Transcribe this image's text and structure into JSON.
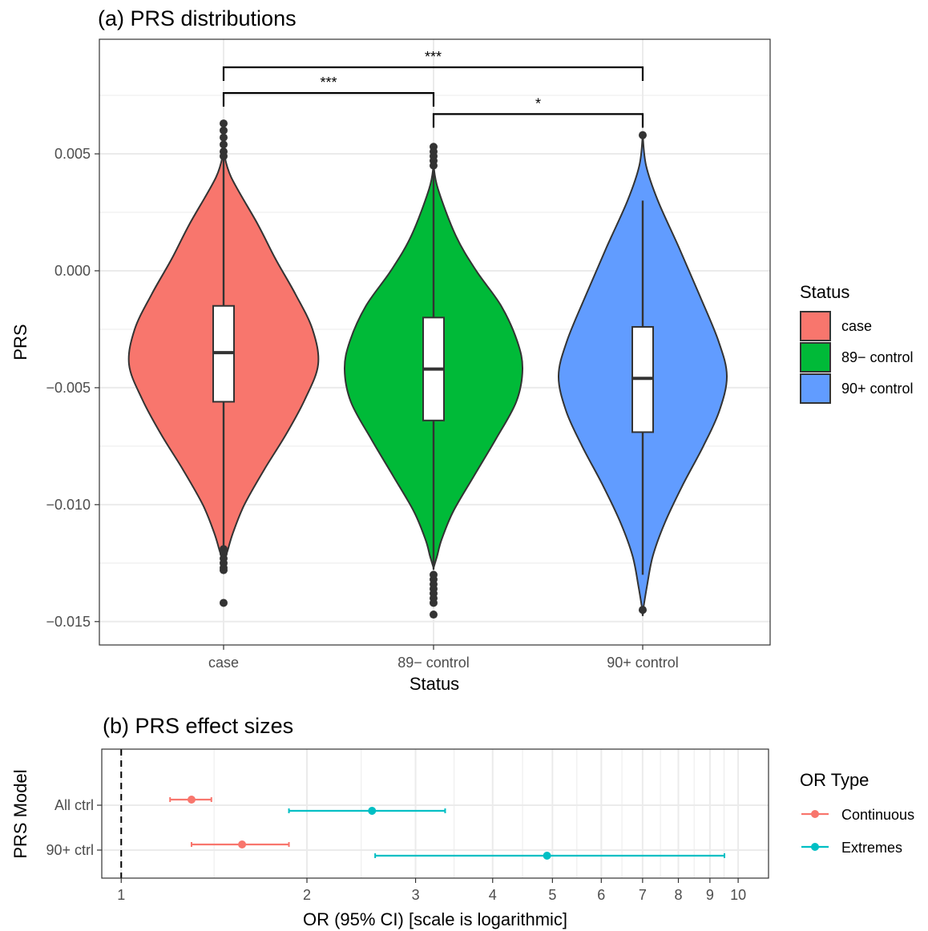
{
  "colors": {
    "case": "#F8766D",
    "ctrl89": "#00BA38",
    "ctrl90": "#619CFF",
    "continuous": "#F8766D",
    "extremes": "#00BFC4",
    "outline": "#333333",
    "grid": "#EBEBEB"
  },
  "chart_data": [
    {
      "type": "violin",
      "title": "(a) PRS distributions",
      "xlabel": "Status",
      "ylabel": "PRS",
      "ylim": [
        -0.016,
        0.0099
      ],
      "y_ticks": [
        0.005,
        0.0,
        -0.005,
        -0.01,
        -0.015
      ],
      "y_tick_labels": [
        "0.005",
        "0.000",
        "−0.005",
        "−0.010",
        "−0.015"
      ],
      "categories": [
        "case",
        "89− control",
        "90+ control"
      ],
      "legend": {
        "title": "Status",
        "position": "right",
        "entries": [
          "case",
          "89− control",
          "90+ control"
        ]
      },
      "series": [
        {
          "category": "case",
          "color_key": "case",
          "box": {
            "q1": -0.0056,
            "median": -0.0035,
            "q3": -0.0015,
            "whisker_low": -0.012,
            "whisker_high": 0.0049
          },
          "violin_min": -0.0125,
          "violin_max": 0.0051,
          "outliers": [
            0.0063,
            0.006,
            0.0057,
            0.0054,
            0.0051,
            0.0049,
            -0.0119,
            -0.0121,
            -0.0123,
            -0.0125,
            -0.0127,
            -0.0128,
            -0.0142
          ]
        },
        {
          "category": "89− control",
          "color_key": "ctrl89",
          "box": {
            "q1": -0.0064,
            "median": -0.0042,
            "q3": -0.002,
            "whisker_low": -0.0127,
            "whisker_high": 0.0045
          },
          "violin_min": -0.0127,
          "violin_max": 0.0045,
          "outliers": [
            0.0053,
            0.0051,
            0.0049,
            0.0047,
            0.0045,
            -0.013,
            -0.0132,
            -0.0134,
            -0.0136,
            -0.0138,
            -0.014,
            -0.0142,
            -0.0147
          ]
        },
        {
          "category": "90+ control",
          "color_key": "ctrl90",
          "box": {
            "q1": -0.0069,
            "median": -0.0046,
            "q3": -0.0024,
            "whisker_low": -0.013,
            "whisker_high": 0.003
          },
          "violin_min": -0.0146,
          "violin_max": 0.0058,
          "outliers": [
            0.0058,
            -0.0145
          ]
        }
      ],
      "significance": [
        {
          "from": "case",
          "to": "90+ control",
          "label": "***",
          "level": 0.0087
        },
        {
          "from": "case",
          "to": "89− control",
          "label": "***",
          "level": 0.0076
        },
        {
          "from": "89− control",
          "to": "90+ control",
          "label": "*",
          "level": 0.0067
        }
      ]
    },
    {
      "type": "forest",
      "title": "(b) PRS effect sizes",
      "xlabel": "OR (95% CI) [scale is logarithmic]",
      "ylabel": "PRS Model",
      "x_scale": "log",
      "xlim": [
        0.93,
        11.2
      ],
      "x_ticks": [
        1,
        2,
        3,
        4,
        5,
        6,
        7,
        8,
        9,
        10
      ],
      "x_tick_labels": [
        "1",
        "2",
        "3",
        "4",
        "5",
        "6",
        "7",
        "8",
        "9",
        "10"
      ],
      "reference_line": 1,
      "categories": [
        "All ctrl",
        "90+ ctrl"
      ],
      "legend": {
        "title": "OR Type",
        "position": "right",
        "entries": [
          "Continuous",
          "Extremes"
        ]
      },
      "series": [
        {
          "name": "Continuous",
          "color_key": "continuous",
          "points": [
            {
              "model": "All ctrl",
              "or": 1.3,
              "lo": 1.2,
              "hi": 1.4
            },
            {
              "model": "90+ ctrl",
              "or": 1.57,
              "lo": 1.3,
              "hi": 1.87
            }
          ]
        },
        {
          "name": "Extremes",
          "color_key": "extremes",
          "points": [
            {
              "model": "All ctrl",
              "or": 2.55,
              "lo": 1.87,
              "hi": 3.35
            },
            {
              "model": "90+ ctrl",
              "or": 4.9,
              "lo": 2.58,
              "hi": 9.5
            }
          ]
        }
      ]
    }
  ]
}
